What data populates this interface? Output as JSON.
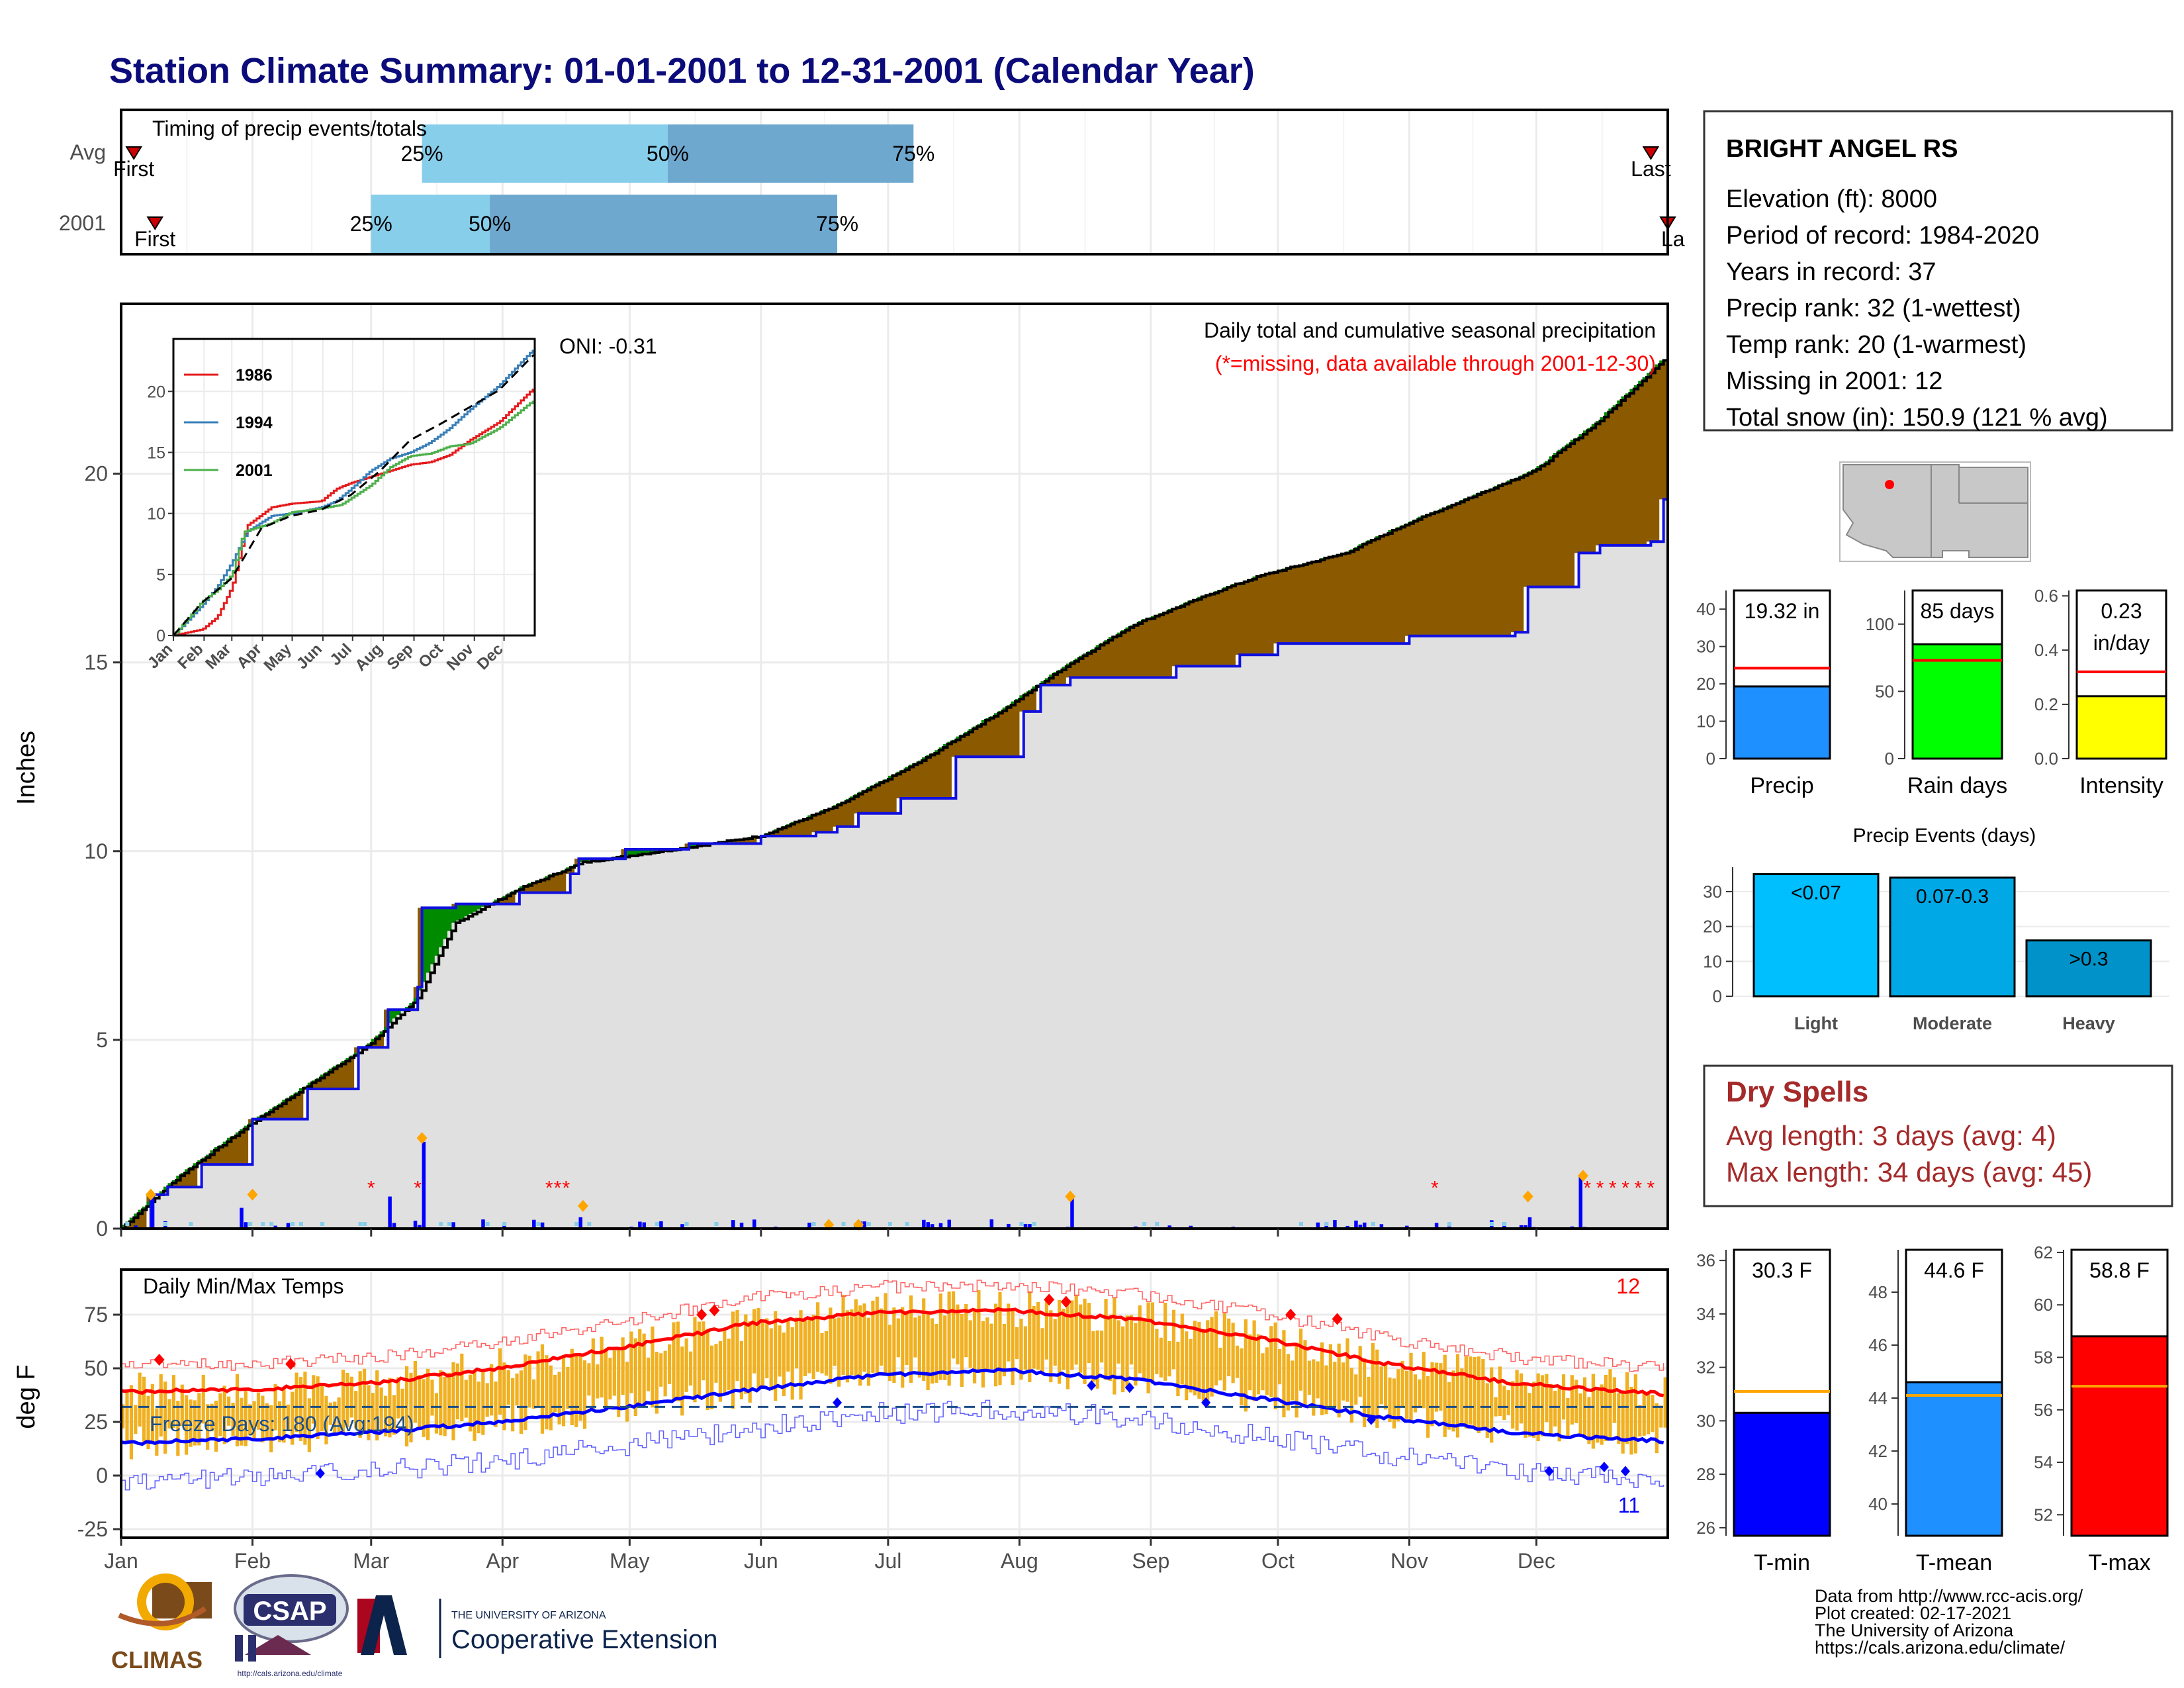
{
  "title": "Station Climate Summary: 01-01-2001 to 12-31-2001 (Calendar Year)",
  "timing": {
    "label": "Timing of precip events/totals",
    "rows": [
      {
        "name": "Avg",
        "first_label": "First",
        "last_label": "Last",
        "first_doy": 4,
        "last_doy": 362,
        "q25_doy": 72,
        "q50_doy": 130,
        "q75_doy": 188,
        "q25_label": "25%",
        "q50_label": "50%",
        "q75_label": "75%"
      },
      {
        "name": "2001",
        "first_label": "First",
        "last_label": "La",
        "first_doy": 9,
        "last_doy": 366,
        "q25_doy": 60,
        "q50_doy": 88,
        "q75_doy": 170,
        "q25_label": "25%",
        "q50_label": "50%",
        "q75_label": "75%"
      }
    ]
  },
  "main_panel": {
    "ylabel": "Inches",
    "note1": "Daily total and cumulative seasonal precipitation",
    "note2": "(*=missing, data available through 2001-12-30)",
    "oni": "ONI: -0.31",
    "ylim": [
      0,
      24.5
    ],
    "yticks": [
      0,
      5,
      10,
      15,
      20
    ]
  },
  "inset": {
    "yticks": [
      0,
      5,
      10,
      15,
      20
    ],
    "months": [
      "Jan",
      "Feb",
      "Mar",
      "Apr",
      "May",
      "Jun",
      "Jul",
      "Aug",
      "Sep",
      "Oct",
      "Nov",
      "Dec"
    ],
    "legend": [
      {
        "name": "1986",
        "color": "#e41a1c"
      },
      {
        "name": "1994",
        "color": "#377eb8"
      },
      {
        "name": "2001",
        "color": "#4daf4a"
      }
    ]
  },
  "temp_panel": {
    "ylabel": "deg F",
    "label": "Daily Min/Max Temps",
    "missing_max": "12",
    "missing_min": "11",
    "freeze_days": "Freeze Days: 180 (Avg:194)",
    "yticks": [
      -25,
      0,
      25,
      50,
      75
    ],
    "ylim": [
      -29,
      96
    ]
  },
  "months": [
    "Jan",
    "Feb",
    "Mar",
    "Apr",
    "May",
    "Jun",
    "Jul",
    "Aug",
    "Sep",
    "Oct",
    "Nov",
    "Dec"
  ],
  "station": {
    "name": "BRIGHT ANGEL RS",
    "lines": [
      "Elevation (ft): 8000",
      "Period of record: 1984-2020",
      "Years in record: 37",
      "Precip rank: 32 (1-wettest)",
      "Temp rank: 20 (1-warmest)",
      "Missing in 2001: 12",
      "Total snow (in): 150.9 (121 % avg)"
    ]
  },
  "bar_stats": [
    {
      "label": "Precip",
      "value_label": "19.32 in",
      "value": 19.32,
      "avg": 24.2,
      "ymax": 45,
      "yticks": [
        0,
        10,
        20,
        30,
        40
      ],
      "color": "#1e90ff"
    },
    {
      "label": "Rain days",
      "value_label": "85 days",
      "value": 85,
      "avg": 73,
      "ymax": 125,
      "yticks": [
        0,
        50,
        100
      ],
      "color": "#00ff00"
    },
    {
      "label": "Intensity",
      "value_label": "0.23",
      "value_label2": "in/day",
      "value": 0.23,
      "avg": 0.32,
      "ymax": 0.62,
      "yticks": [
        "0.0",
        "0.2",
        "0.4",
        "0.6"
      ],
      "color": "#ffff00"
    }
  ],
  "precip_events": {
    "title": "Precip Events (days)",
    "categories": [
      "Light",
      "Moderate",
      "Heavy"
    ],
    "bar_labels": [
      "<0.07",
      "0.07-0.3",
      ">0.3"
    ],
    "values": [
      35,
      34,
      16
    ],
    "yticks": [
      0,
      10,
      20,
      30
    ],
    "ymax": 37,
    "colors": [
      "#00bfff",
      "#00a9e6",
      "#0092c8"
    ]
  },
  "dry_spells": {
    "title": "Dry Spells",
    "line1": "Avg length: 3 days (avg: 4)",
    "line2": "Max length: 34 days (avg: 45)"
  },
  "temp_stats": [
    {
      "label": "T-min",
      "value_label": "30.3 F",
      "value": 30.3,
      "avg": 31.1,
      "ymin": 25.7,
      "ymax": 36.4,
      "yticks": [
        26,
        28,
        30,
        32,
        34,
        36
      ],
      "color": "#0000ff"
    },
    {
      "label": "T-mean",
      "value_label": "44.6 F",
      "value": 44.6,
      "avg": 44.1,
      "ymin": 38.8,
      "ymax": 49.6,
      "yticks": [
        40,
        42,
        44,
        46,
        48
      ],
      "color": "#1e90ff"
    },
    {
      "label": "T-max",
      "value_label": "58.8 F",
      "value": 58.8,
      "avg": 56.9,
      "ymin": 51.2,
      "ymax": 62.1,
      "yticks": [
        52,
        54,
        56,
        58,
        60,
        62
      ],
      "color": "#ff0000"
    }
  ],
  "footer": [
    "Data from http://www.rcc-acis.org/",
    "Plot created: 02-17-2021",
    "The University of Arizona",
    "https://cals.arizona.edu/climate/"
  ],
  "logos": {
    "climas": "CLIMAS",
    "csap": "CSAP",
    "csap_url": "http://cals.arizona.edu/climate",
    "ua_small": "THE UNIVERSITY OF ARIZONA",
    "ua_big": "Cooperative Extension"
  },
  "chart_data": [
    {
      "type": "area",
      "title": "Daily total and cumulative seasonal precipitation",
      "ylabel": "Inches",
      "xlabel": "",
      "ylim": [
        0,
        24.5
      ],
      "x_unit": "day of year 2001",
      "cumulative_2001": [
        [
          1,
          0
        ],
        [
          8,
          0.9
        ],
        [
          12,
          1.1
        ],
        [
          20,
          1.7
        ],
        [
          32,
          2.9
        ],
        [
          45,
          3.7
        ],
        [
          57,
          4.8
        ],
        [
          64,
          5.8
        ],
        [
          71,
          6.4
        ],
        [
          72,
          8.5
        ],
        [
          80,
          8.6
        ],
        [
          95,
          8.9
        ],
        [
          107,
          9.4
        ],
        [
          109,
          9.8
        ],
        [
          120,
          10.05
        ],
        [
          135,
          10.2
        ],
        [
          152,
          10.4
        ],
        [
          165,
          10.5
        ],
        [
          170,
          10.65
        ],
        [
          175,
          11.0
        ],
        [
          185,
          11.4
        ],
        [
          198,
          12.5
        ],
        [
          214,
          13.7
        ],
        [
          218,
          14.4
        ],
        [
          225,
          14.6
        ],
        [
          250,
          14.9
        ],
        [
          265,
          15.2
        ],
        [
          274,
          15.5
        ],
        [
          305,
          15.7
        ],
        [
          330,
          15.8
        ],
        [
          333,
          17.0
        ],
        [
          345,
          17.9
        ],
        [
          350,
          18.1
        ],
        [
          362,
          18.2
        ],
        [
          365,
          19.32
        ]
      ],
      "average_cumulative": [
        [
          1,
          0
        ],
        [
          15,
          1.4
        ],
        [
          32,
          2.8
        ],
        [
          60,
          4.9
        ],
        [
          71,
          6.1
        ],
        [
          80,
          8.1
        ],
        [
          95,
          9.0
        ],
        [
          110,
          9.7
        ],
        [
          135,
          10.1
        ],
        [
          152,
          10.4
        ],
        [
          170,
          11.2
        ],
        [
          190,
          12.4
        ],
        [
          210,
          13.8
        ],
        [
          224,
          14.9
        ],
        [
          240,
          16.0
        ],
        [
          260,
          16.9
        ],
        [
          270,
          17.3
        ],
        [
          290,
          17.9
        ],
        [
          305,
          18.7
        ],
        [
          320,
          19.4
        ],
        [
          335,
          20.1
        ],
        [
          350,
          21.4
        ],
        [
          365,
          23.0
        ]
      ],
      "daily_precip_highlights": [
        [
          8,
          0.9
        ],
        [
          29,
          0.55
        ],
        [
          64,
          0.85
        ],
        [
          72,
          2.3
        ],
        [
          109,
          0.3
        ],
        [
          155,
          0.05
        ],
        [
          215,
          0.12
        ],
        [
          225,
          0.8
        ],
        [
          311,
          0.15
        ],
        [
          333,
          0.3
        ],
        [
          345,
          1.4
        ]
      ]
    },
    {
      "type": "line",
      "title": "",
      "series": [
        {
          "name": "1986",
          "x_doy": [
            1,
            30,
            45,
            60,
            75,
            100,
            120,
            150,
            165,
            180,
            200,
            220,
            240,
            260,
            280,
            300,
            330,
            365
          ],
          "values": [
            0,
            0.5,
            1.5,
            4.0,
            9.0,
            10.5,
            10.8,
            11.0,
            12.0,
            12.5,
            13.0,
            13.5,
            14.0,
            14.2,
            14.8,
            16.0,
            17.5,
            20.3
          ]
        },
        {
          "name": "1994",
          "x_doy": [
            1,
            30,
            45,
            60,
            75,
            100,
            120,
            150,
            165,
            180,
            200,
            220,
            240,
            260,
            280,
            300,
            330,
            365
          ],
          "values": [
            0,
            2.5,
            4.0,
            6.0,
            8.5,
            9.8,
            10.0,
            10.5,
            11.0,
            12.0,
            13.5,
            14.5,
            15.0,
            15.8,
            17.0,
            18.5,
            20.5,
            23.5
          ]
        },
        {
          "name": "2001",
          "x_doy": [
            1,
            30,
            45,
            60,
            72,
            100,
            120,
            150,
            170,
            200,
            220,
            240,
            260,
            280,
            300,
            330,
            365
          ],
          "values": [
            0,
            2.8,
            3.7,
            5.0,
            8.5,
            9.2,
            10.1,
            10.4,
            10.7,
            12.3,
            13.8,
            14.7,
            14.9,
            15.5,
            15.7,
            17.0,
            19.3
          ]
        }
      ],
      "average": {
        "x_doy": [
          1,
          30,
          60,
          90,
          120,
          150,
          180,
          210,
          240,
          270,
          300,
          330,
          365
        ],
        "values": [
          0,
          2.7,
          4.7,
          8.8,
          9.8,
          10.3,
          11.5,
          13.5,
          16.0,
          17.3,
          18.7,
          20.1,
          23.0
        ]
      }
    },
    {
      "type": "line",
      "title": "Daily Min/Max Temps",
      "ylabel": "deg F",
      "ylim": [
        -29,
        96
      ],
      "normal_max": {
        "x_doy": [
          1,
          30,
          60,
          90,
          120,
          150,
          180,
          210,
          240,
          270,
          300,
          330,
          365
        ],
        "values": [
          39,
          40,
          43,
          50,
          60,
          71,
          76,
          77,
          73,
          64,
          52,
          43,
          38
        ]
      },
      "normal_min": {
        "x_doy": [
          1,
          30,
          60,
          90,
          120,
          150,
          180,
          210,
          240,
          270,
          300,
          330,
          365
        ],
        "values": [
          15,
          17,
          20,
          25,
          32,
          40,
          47,
          49,
          45,
          36,
          27,
          20,
          16
        ]
      },
      "freeze_line": 32
    }
  ]
}
